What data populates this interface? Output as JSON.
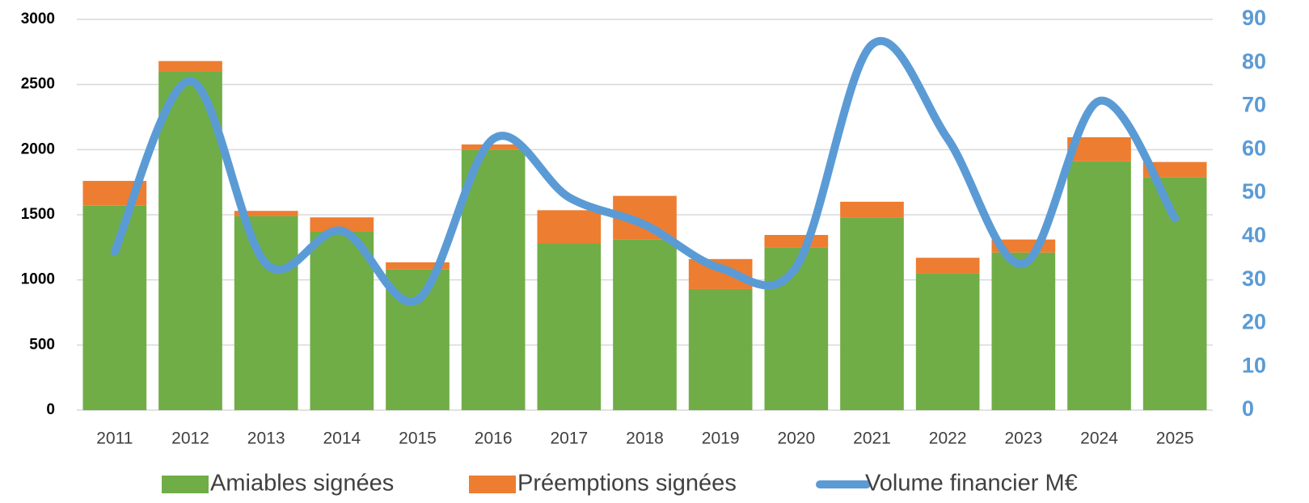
{
  "chart_data": {
    "type": "bar_line",
    "categories": [
      "2011",
      "2012",
      "2013",
      "2014",
      "2015",
      "2016",
      "2017",
      "2018",
      "2019",
      "2020",
      "2021",
      "2022",
      "2023",
      "2024",
      "2025"
    ],
    "series": [
      {
        "name": "Amiables signées",
        "color": "#70ad47",
        "type": "bar",
        "values": [
          1570,
          2600,
          1490,
          1370,
          1080,
          2000,
          1280,
          1310,
          930,
          1250,
          1480,
          1050,
          1210,
          1910,
          1790
        ]
      },
      {
        "name": "Préemptions signées",
        "color": "#ed7d31",
        "type": "bar",
        "values": [
          190,
          80,
          40,
          110,
          55,
          40,
          255,
          335,
          230,
          95,
          120,
          120,
          100,
          185,
          115
        ]
      },
      {
        "name": "Volume financier M€",
        "color": "#5b9bd5",
        "type": "line",
        "axis": "y2",
        "values": [
          36.5,
          75.8,
          33.7,
          41.3,
          25.4,
          62.5,
          49,
          42.7,
          32.7,
          33,
          84.2,
          62.5,
          33.7,
          71.2,
          44.2
        ]
      }
    ],
    "ylim": [
      0,
      3000
    ],
    "yticks": [
      0,
      500,
      1000,
      1500,
      2000,
      2500,
      3000
    ],
    "y2lim": [
      0,
      90
    ],
    "y2ticks": [
      0,
      10,
      20,
      30,
      40,
      50,
      60,
      70,
      80,
      90
    ],
    "grid": true,
    "legend": "bottom"
  }
}
